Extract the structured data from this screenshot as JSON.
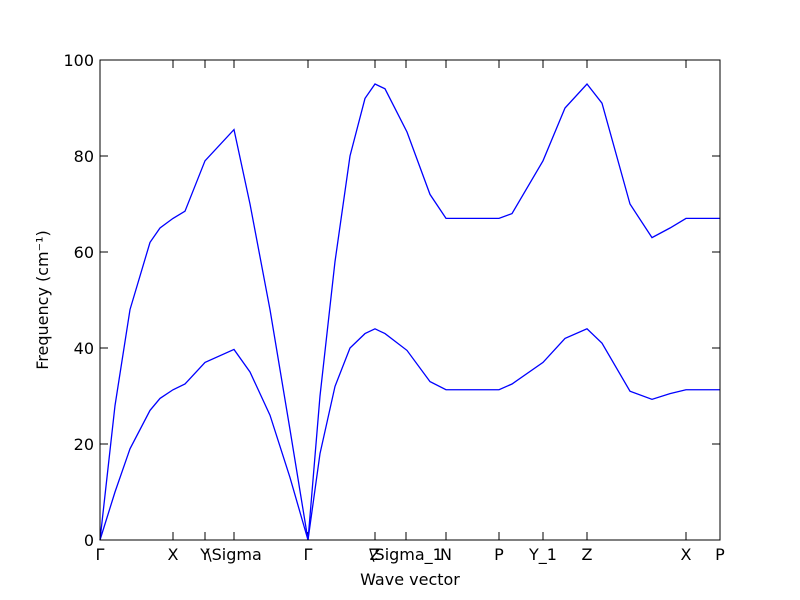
{
  "chart_data": {
    "type": "line",
    "xlabel": "Wave vector",
    "ylabel": "Frequency (cm⁻¹)",
    "x": [
      0,
      0.15,
      0.3,
      0.5,
      0.6,
      0.73,
      0.85,
      1.05,
      1.34,
      1.5,
      1.7,
      1.9,
      2.08,
      2.2,
      2.35,
      2.5,
      2.65,
      2.75,
      2.85,
      3.07,
      3.3,
      3.46,
      3.99,
      4.12,
      4.43,
      4.65,
      4.87,
      5.02,
      5.3,
      5.52,
      5.7,
      5.86,
      6.2
    ],
    "series": [
      {
        "color": "#0000ff",
        "values": [
          0,
          28,
          48,
          62,
          65,
          67,
          68.5,
          79,
          85.5,
          70,
          48,
          23,
          0,
          30,
          58,
          80,
          92,
          95,
          94,
          85,
          72,
          67,
          67,
          68,
          79,
          90,
          95,
          91,
          70,
          63,
          65,
          67,
          67
        ]
      },
      {
        "color": "#0000ff",
        "values": [
          0,
          10,
          19,
          27,
          29.5,
          31.3,
          32.5,
          37,
          39.7,
          35,
          26,
          13,
          0,
          18,
          32,
          40,
          43,
          44,
          43,
          39.5,
          33,
          31.3,
          31.3,
          32.5,
          37,
          42,
          44,
          41,
          31,
          29.3,
          30.5,
          31.3,
          31.3
        ]
      }
    ],
    "xlim": [
      0,
      6.2
    ],
    "ylim": [
      0,
      100
    ],
    "yticks": [
      0,
      20,
      40,
      60,
      80,
      100
    ],
    "xticks": [
      {
        "value": 0,
        "label": "Γ"
      },
      {
        "value": 0.73,
        "label": "X"
      },
      {
        "value": 1.05,
        "label": "Y"
      },
      {
        "value": 1.34,
        "label": "\\Sigma"
      },
      {
        "value": 2.08,
        "label": "Γ"
      },
      {
        "value": 2.75,
        "label": "Z"
      },
      {
        "value": 3.06,
        "label": "\\Sigma_1"
      },
      {
        "value": 3.46,
        "label": "N"
      },
      {
        "value": 3.99,
        "label": "P"
      },
      {
        "value": 4.43,
        "label": "Y_1"
      },
      {
        "value": 4.87,
        "label": "Z"
      },
      {
        "value": 5.86,
        "label": "X"
      },
      {
        "value": 6.2,
        "label": "P"
      }
    ]
  }
}
